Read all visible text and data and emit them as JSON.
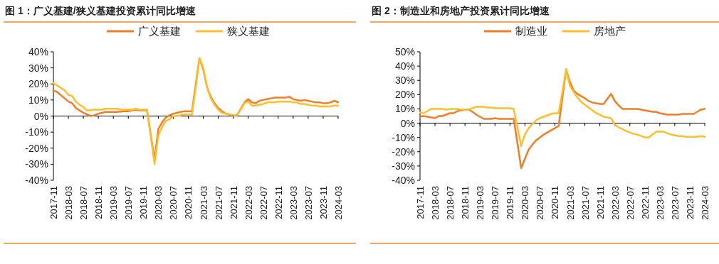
{
  "chart_data": [
    {
      "type": "line",
      "title": "图 1：广义基建/狭义基建投资累计同比增速",
      "legend": "top",
      "marker": "none",
      "line_style": "solid",
      "categories": [
        "2017-11",
        null,
        null,
        null,
        "2018-03",
        null,
        null,
        null,
        "2018-07",
        null,
        null,
        null,
        "2018-11",
        null,
        null,
        null,
        "2019-03",
        null,
        null,
        null,
        "2019-07",
        null,
        null,
        null,
        "2019-11",
        null,
        null,
        null,
        "2020-03",
        null,
        null,
        null,
        "2020-07",
        null,
        null,
        null,
        "2020-11",
        null,
        null,
        null,
        "2021-03",
        null,
        null,
        null,
        "2021-07",
        null,
        null,
        null,
        "2021-11",
        null,
        null,
        null,
        "2022-03",
        null,
        null,
        null,
        "2022-07",
        null,
        null,
        null,
        "2022-11",
        null,
        null,
        null,
        "2023-03",
        null,
        null,
        null,
        "2023-07",
        null,
        null,
        null,
        "2023-11",
        null,
        null,
        null,
        "2024-03"
      ],
      "ylim": [
        -40,
        40
      ],
      "yticks": [
        {
          "value": -40,
          "label": "-40%"
        },
        {
          "value": -30,
          "label": "-30%"
        },
        {
          "value": -20,
          "label": "-20%"
        },
        {
          "value": -10,
          "label": "-10%"
        },
        {
          "value": 0,
          "label": "0%"
        },
        {
          "value": 10,
          "label": "10%"
        },
        {
          "value": 20,
          "label": "20%"
        },
        {
          "value": 30,
          "label": "30%"
        },
        {
          "value": 40,
          "label": "40%"
        }
      ],
      "series": [
        {
          "name": "广义基建",
          "color": "#f07d28",
          "values": [
            16,
            15,
            13,
            11,
            9,
            8,
            5,
            3.5,
            2,
            1,
            0,
            0.5,
            1.5,
            2,
            2.5,
            2.5,
            2.5,
            2.5,
            2.8,
            3,
            3,
            3.5,
            4,
            3.5,
            3.5,
            3.5,
            -12,
            -27,
            -8,
            -4,
            -1,
            0.5,
            1.5,
            2,
            2.5,
            3,
            3,
            3,
            20,
            36,
            29,
            18,
            12,
            8,
            5,
            3,
            1.5,
            1,
            0.5,
            0.5,
            4.5,
            8.5,
            10.5,
            8.5,
            8,
            9.5,
            10,
            10.5,
            11,
            11.5,
            11.5,
            11.5,
            11.5,
            12,
            10.5,
            10,
            9.5,
            10,
            9.5,
            9,
            8.5,
            8.5,
            8,
            8,
            8.5,
            9.5,
            8.5
          ]
        },
        {
          "name": "狭义基建",
          "color": "#fbbf2e",
          "values": [
            20.5,
            19,
            17.5,
            16,
            13,
            12.5,
            9,
            7,
            5.5,
            3.5,
            3.5,
            4,
            4,
            4,
            4.5,
            4.5,
            4.5,
            4.5,
            4,
            4,
            4,
            4,
            4.5,
            4,
            4,
            4,
            -13,
            -30,
            -12,
            -7,
            -3,
            -2,
            0,
            0,
            0.5,
            1,
            1,
            1,
            18,
            36,
            30,
            18,
            11,
            7,
            4,
            2,
            1.5,
            1,
            0.5,
            0.5,
            4,
            8,
            9,
            6.5,
            6.5,
            7,
            7.5,
            8.5,
            8.5,
            8.5,
            9,
            9,
            9,
            9,
            8.5,
            8.5,
            7.5,
            7.5,
            7,
            6.5,
            6.5,
            6,
            6,
            6,
            6,
            6.5,
            6.5
          ]
        }
      ]
    },
    {
      "type": "line",
      "title": "图 2：制造业和房地产投资累计同比增速",
      "legend": "top",
      "marker": "none",
      "line_style": "solid",
      "categories": [
        "2017-11",
        null,
        null,
        null,
        "2018-03",
        null,
        null,
        null,
        "2018-07",
        null,
        null,
        null,
        "2018-11",
        null,
        null,
        null,
        "2019-03",
        null,
        null,
        null,
        "2019-07",
        null,
        null,
        null,
        "2019-11",
        null,
        null,
        null,
        "2020-03",
        null,
        null,
        null,
        "2020-07",
        null,
        null,
        null,
        "2020-11",
        null,
        null,
        null,
        "2021-03",
        null,
        null,
        null,
        "2021-07",
        null,
        null,
        null,
        "2021-11",
        null,
        null,
        null,
        "2022-03",
        null,
        null,
        null,
        "2022-07",
        null,
        null,
        null,
        "2022-11",
        null,
        null,
        null,
        "2023-03",
        null,
        null,
        null,
        "2023-07",
        null,
        null,
        null,
        "2023-11",
        null,
        null,
        null,
        "2024-03"
      ],
      "ylim": [
        -40,
        50
      ],
      "yticks": [
        {
          "value": -40,
          "label": "-40%"
        },
        {
          "value": -30,
          "label": "-30%"
        },
        {
          "value": -20,
          "label": "-20%"
        },
        {
          "value": -10,
          "label": "-10%"
        },
        {
          "value": 0,
          "label": "0%"
        },
        {
          "value": 10,
          "label": "10%"
        },
        {
          "value": 20,
          "label": "20%"
        },
        {
          "value": 30,
          "label": "30%"
        },
        {
          "value": 40,
          "label": "40%"
        },
        {
          "value": 50,
          "label": "50%"
        }
      ],
      "series": [
        {
          "name": "制造业",
          "color": "#f07d28",
          "values": [
            4.5,
            5,
            4.5,
            4,
            3.5,
            5,
            5,
            6,
            7,
            7,
            8.5,
            9,
            9.5,
            9.5,
            8,
            6,
            4.5,
            3,
            3,
            3,
            3.5,
            3,
            3,
            3,
            3,
            3,
            -14,
            -31.5,
            -25,
            -18.5,
            -15,
            -12,
            -10,
            -8,
            -6.5,
            -5,
            -3.5,
            -2,
            18,
            37.5,
            29,
            23,
            20.5,
            19,
            17.5,
            15.5,
            14.5,
            14,
            13.5,
            13.5,
            17,
            20.5,
            15.5,
            12.5,
            10,
            10,
            10,
            10,
            10,
            9.5,
            9,
            8.5,
            8,
            8,
            7,
            6.5,
            6,
            6,
            6,
            6,
            6.5,
            6.5,
            6.5,
            6.5,
            8,
            9.5,
            10
          ]
        },
        {
          "name": "房地产",
          "color": "#fbbf2e",
          "values": [
            7.5,
            7,
            8.5,
            10,
            10,
            10,
            10,
            9.5,
            10,
            10,
            10,
            9.5,
            9.5,
            9.5,
            10.5,
            11.5,
            11.5,
            11.5,
            11,
            11,
            10.5,
            10.5,
            10.5,
            10.5,
            10.5,
            10,
            -3,
            -16,
            -8,
            -3.5,
            -0.5,
            2,
            3.5,
            4.5,
            5.5,
            6.5,
            7,
            7,
            22,
            38,
            26,
            22,
            18,
            15,
            13,
            11,
            9,
            7,
            6,
            4.5,
            4,
            3.5,
            -1,
            -3,
            -4,
            -5.5,
            -6.5,
            -7.5,
            -8,
            -9,
            -10,
            -10,
            -8,
            -6,
            -6,
            -6,
            -7,
            -8,
            -8.5,
            -9,
            -9,
            -9.5,
            -9.5,
            -9.5,
            -9.5,
            -9,
            -9.5
          ]
        }
      ]
    }
  ]
}
